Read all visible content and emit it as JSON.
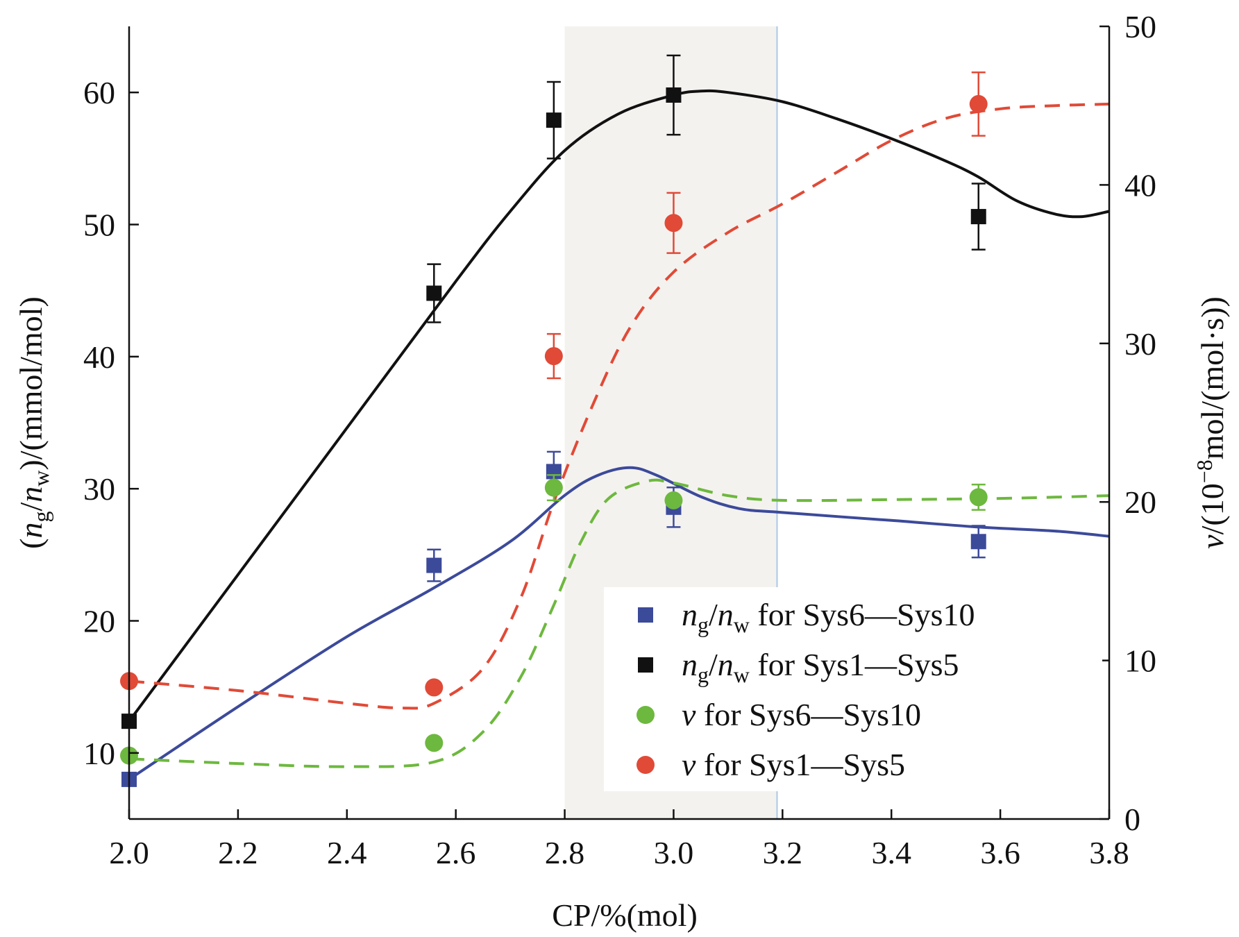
{
  "chart_data": {
    "type": "scatter",
    "x_axis": {
      "title": "CP/%(mol)",
      "range": [
        2.0,
        3.8
      ],
      "ticks": [
        2.0,
        2.2,
        2.4,
        2.6,
        2.8,
        3.0,
        3.2,
        3.4,
        3.6,
        3.8
      ],
      "tick_labels": [
        "2.0",
        "2.2",
        "2.4",
        "2.6",
        "2.8",
        "3.0",
        "3.2",
        "3.4",
        "3.6",
        "3.8"
      ]
    },
    "y_left": {
      "title_parts": [
        "(",
        "n",
        "g",
        "/",
        "n",
        "w",
        ")/(mmol/mol)"
      ],
      "range": [
        5,
        65
      ],
      "ticks": [
        10,
        20,
        30,
        40,
        50,
        60
      ],
      "tick_labels": [
        "10",
        "20",
        "30",
        "40",
        "50",
        "60"
      ]
    },
    "y_right": {
      "title_parts": [
        "v",
        "/(10",
        "−8",
        "mol/(mol·s))"
      ],
      "range": [
        0,
        50
      ],
      "ticks": [
        0,
        10,
        20,
        30,
        40,
        50
      ],
      "tick_labels": [
        "0",
        "10",
        "20",
        "30",
        "40",
        "50"
      ]
    },
    "shaded_region": {
      "x": [
        2.8,
        3.19
      ],
      "color": "#f4f2ef",
      "edge_color": "#a9c8e8"
    },
    "series": [
      {
        "name": "ng/nw for Sys6—Sys10",
        "legend_parts": [
          "n",
          "g",
          "/",
          "n",
          "w",
          " for Sys6—Sys10"
        ],
        "axis": "left",
        "marker": "square",
        "color": "#3c4a9a",
        "points": [
          {
            "x": 2.0,
            "y": 8.0
          },
          {
            "x": 2.56,
            "y": 24.2,
            "err": 1.2
          },
          {
            "x": 2.78,
            "y": 31.3,
            "err": 1.5
          },
          {
            "x": 3.0,
            "y": 28.6,
            "err": 1.5
          },
          {
            "x": 3.56,
            "y": 26.0,
            "err": 1.2
          }
        ],
        "fit": {
          "style": "solid",
          "color": "#3c4a9a",
          "points": [
            [
              2.0,
              8.0
            ],
            [
              2.2,
              13.5
            ],
            [
              2.4,
              18.8
            ],
            [
              2.56,
              22.5
            ],
            [
              2.7,
              26.0
            ],
            [
              2.8,
              29.5
            ],
            [
              2.86,
              31.0
            ],
            [
              2.92,
              31.6
            ],
            [
              2.97,
              31.0
            ],
            [
              3.05,
              29.4
            ],
            [
              3.12,
              28.5
            ],
            [
              3.2,
              28.2
            ],
            [
              3.4,
              27.6
            ],
            [
              3.56,
              27.1
            ],
            [
              3.7,
              26.8
            ],
            [
              3.8,
              26.4
            ]
          ]
        }
      },
      {
        "name": "ng/nw for Sys1—Sys5",
        "legend_parts": [
          "n",
          "g",
          "/",
          "n",
          "w",
          " for Sys1—Sys5"
        ],
        "axis": "left",
        "marker": "square",
        "color": "#111111",
        "points": [
          {
            "x": 2.0,
            "y": 12.4
          },
          {
            "x": 2.56,
            "y": 44.8,
            "err": 2.2
          },
          {
            "x": 2.78,
            "y": 57.9,
            "err": 2.9
          },
          {
            "x": 3.0,
            "y": 59.8,
            "err": 3.0
          },
          {
            "x": 3.56,
            "y": 50.6,
            "err": 2.5
          }
        ],
        "fit": {
          "style": "solid",
          "color": "#111111",
          "points": [
            [
              2.0,
              12.4
            ],
            [
              2.2,
              23.5
            ],
            [
              2.4,
              34.6
            ],
            [
              2.6,
              45.7
            ],
            [
              2.7,
              51.0
            ],
            [
              2.8,
              55.6
            ],
            [
              2.9,
              58.4
            ],
            [
              3.0,
              59.8
            ],
            [
              3.05,
              60.1
            ],
            [
              3.1,
              60.0
            ],
            [
              3.2,
              59.3
            ],
            [
              3.3,
              58.0
            ],
            [
              3.4,
              56.5
            ],
            [
              3.5,
              54.8
            ],
            [
              3.56,
              53.6
            ],
            [
              3.63,
              51.8
            ],
            [
              3.7,
              50.8
            ],
            [
              3.75,
              50.6
            ],
            [
              3.8,
              51.0
            ]
          ]
        }
      },
      {
        "name": "v for Sys6—Sys10",
        "legend_parts": [
          "v",
          " for Sys6—Sys10"
        ],
        "axis": "right",
        "marker": "circle",
        "color": "#6db83e",
        "points": [
          {
            "x": 2.0,
            "y": 4.0
          },
          {
            "x": 2.56,
            "y": 4.8
          },
          {
            "x": 2.78,
            "y": 20.9,
            "err": 0.8
          },
          {
            "x": 3.0,
            "y": 20.1
          },
          {
            "x": 3.56,
            "y": 20.3,
            "err": 0.8
          }
        ],
        "fit": {
          "style": "dashed",
          "color": "#6db83e",
          "points": [
            [
              2.0,
              3.8
            ],
            [
              2.2,
              3.5
            ],
            [
              2.4,
              3.3
            ],
            [
              2.56,
              3.6
            ],
            [
              2.65,
              5.5
            ],
            [
              2.72,
              9.0
            ],
            [
              2.78,
              13.5
            ],
            [
              2.83,
              17.5
            ],
            [
              2.88,
              20.2
            ],
            [
              2.95,
              21.3
            ],
            [
              3.0,
              21.2
            ],
            [
              3.1,
              20.4
            ],
            [
              3.2,
              20.1
            ],
            [
              3.4,
              20.15
            ],
            [
              3.56,
              20.2
            ],
            [
              3.7,
              20.3
            ],
            [
              3.8,
              20.4
            ]
          ]
        }
      },
      {
        "name": "v for Sys1—Sys5",
        "legend_parts": [
          "v",
          " for Sys1—Sys5"
        ],
        "axis": "right",
        "marker": "circle",
        "color": "#e04a37",
        "points": [
          {
            "x": 2.0,
            "y": 8.7
          },
          {
            "x": 2.56,
            "y": 8.3
          },
          {
            "x": 2.78,
            "y": 29.2,
            "err": 1.4
          },
          {
            "x": 3.0,
            "y": 37.6,
            "err": 1.9
          },
          {
            "x": 3.56,
            "y": 45.1,
            "err": 2.0
          }
        ],
        "fit": {
          "style": "dashed",
          "color": "#e04a37",
          "points": [
            [
              2.0,
              8.7
            ],
            [
              2.2,
              8.1
            ],
            [
              2.4,
              7.3
            ],
            [
              2.5,
              7.0
            ],
            [
              2.56,
              7.3
            ],
            [
              2.65,
              9.5
            ],
            [
              2.72,
              14.0
            ],
            [
              2.78,
              20.0
            ],
            [
              2.85,
              26.0
            ],
            [
              2.92,
              31.0
            ],
            [
              3.0,
              34.5
            ],
            [
              3.1,
              37.0
            ],
            [
              3.2,
              38.8
            ],
            [
              3.3,
              40.8
            ],
            [
              3.4,
              42.8
            ],
            [
              3.5,
              44.2
            ],
            [
              3.6,
              44.8
            ],
            [
              3.7,
              45.0
            ],
            [
              3.8,
              45.1
            ]
          ]
        }
      }
    ],
    "legend": {
      "position": "lower-right"
    }
  }
}
